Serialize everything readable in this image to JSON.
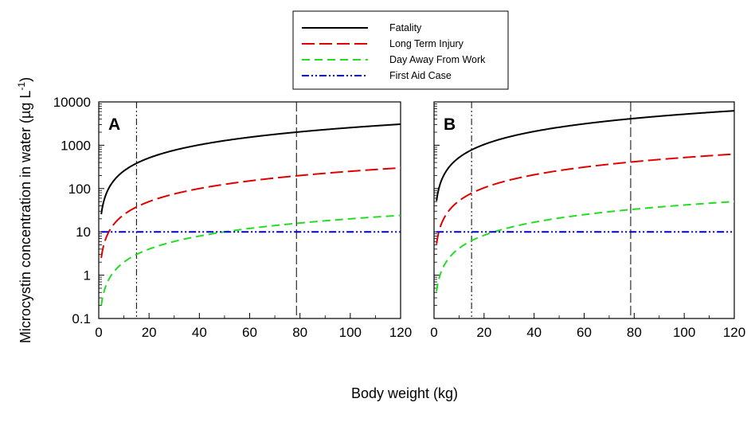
{
  "chart_data": {
    "type": "line",
    "ylabel_main": "Microcystin concentration in water (µg L",
    "ylabel_sup": "-1",
    "ylabel_close": ")",
    "xlabel": "Body weight (kg)",
    "yscale": "log",
    "xlim": [
      0,
      120
    ],
    "ylim": [
      0.1,
      10000
    ],
    "x_ticks": [
      0,
      20,
      40,
      60,
      80,
      100,
      120
    ],
    "y_ticks": [
      0.1,
      1,
      10,
      100,
      1000,
      10000
    ],
    "y_tick_labels": [
      "0.1",
      "1",
      "10",
      "100",
      "1000",
      "10000"
    ],
    "legend": {
      "placement": "top-center",
      "entries": [
        {
          "label": "Fatality",
          "color": "#000000",
          "dash": "solid"
        },
        {
          "label": "Long Term Injury",
          "color": "#e00000",
          "dash": "long-dash"
        },
        {
          "label": "Day Away From Work",
          "color": "#22dd22",
          "dash": "dash"
        },
        {
          "label": "First Aid Case",
          "color": "#0000cc",
          "dash": "dash-dot-dot"
        }
      ]
    },
    "reference_lines_x": [
      {
        "x": 15,
        "style": "dash-dot-dot"
      },
      {
        "x": 78.6,
        "style": "long-dash"
      }
    ],
    "panels": [
      {
        "label": "A",
        "series": [
          {
            "name": "Fatality",
            "x": [
              1,
              120
            ],
            "y_at_1kg": 25.5,
            "y_at_120kg": 3060
          },
          {
            "name": "Long Term Injury",
            "x": [
              1,
              120
            ],
            "y_at_1kg": 2.5,
            "y_at_120kg": 300
          },
          {
            "name": "Day Away From Work",
            "x": [
              1,
              120
            ],
            "y_at_1kg": 0.2,
            "y_at_120kg": 24
          },
          {
            "name": "First Aid Case",
            "x": [
              1,
              120
            ],
            "y_at_1kg": 10,
            "y_at_120kg": 10
          }
        ]
      },
      {
        "label": "B",
        "series": [
          {
            "name": "Fatality",
            "x": [
              1,
              120
            ],
            "y_at_1kg": 52,
            "y_at_120kg": 6240
          },
          {
            "name": "Long Term Injury",
            "x": [
              1,
              120
            ],
            "y_at_1kg": 5.2,
            "y_at_120kg": 624
          },
          {
            "name": "Day Away From Work",
            "x": [
              1,
              120
            ],
            "y_at_1kg": 0.42,
            "y_at_120kg": 50
          },
          {
            "name": "First Aid Case",
            "x": [
              1,
              120
            ],
            "y_at_1kg": 10,
            "y_at_120kg": 10
          }
        ]
      }
    ]
  }
}
